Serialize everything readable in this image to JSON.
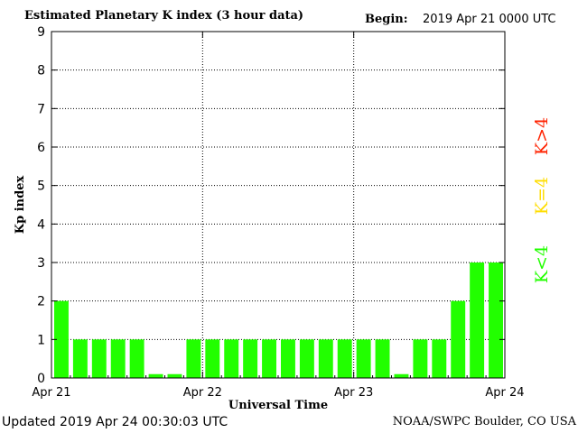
{
  "header": {
    "title": "Estimated Planetary K index (3 hour data)",
    "begin_label": "Begin:",
    "begin_value": "2019 Apr 21 0000 UTC"
  },
  "footer": {
    "updated": "Updated 2019 Apr 24 00:30:03 UTC",
    "credit": "NOAA/SWPC Boulder, CO USA"
  },
  "legend": {
    "k_gt4": "K>4",
    "k_eq4": "K=4",
    "k_lt4": "K<4"
  },
  "colors": {
    "k_lt4": "#22ff00",
    "k_eq4": "#ffdd00",
    "k_gt4": "#ff2200"
  },
  "chart_data": {
    "type": "bar",
    "title": "Estimated Planetary K index (3 hour data)",
    "xlabel": "Universal Time",
    "ylabel": "Kp index",
    "ylim": [
      0,
      9
    ],
    "yticks": [
      "0",
      "1",
      "2",
      "3",
      "4",
      "5",
      "6",
      "7",
      "8",
      "9"
    ],
    "xticks": [
      "Apr 21",
      "Apr 22",
      "Apr 23",
      "Apr 24"
    ],
    "grid": "dotted, at each integer Kp and each day boundary",
    "categories": [
      "Apr 21 00",
      "Apr 21 03",
      "Apr 21 06",
      "Apr 21 09",
      "Apr 21 12",
      "Apr 21 15",
      "Apr 21 18",
      "Apr 21 21",
      "Apr 22 00",
      "Apr 22 03",
      "Apr 22 06",
      "Apr 22 09",
      "Apr 22 12",
      "Apr 22 15",
      "Apr 22 18",
      "Apr 22 21",
      "Apr 23 00",
      "Apr 23 03",
      "Apr 23 06",
      "Apr 23 09",
      "Apr 23 12",
      "Apr 23 15",
      "Apr 23 18",
      "Apr 23 21"
    ],
    "values": [
      2,
      1,
      1,
      1,
      1,
      0.1,
      0.1,
      1,
      1,
      1,
      1,
      1,
      1,
      1,
      1,
      1,
      1,
      1,
      0.1,
      1,
      1,
      2,
      3,
      3
    ]
  }
}
